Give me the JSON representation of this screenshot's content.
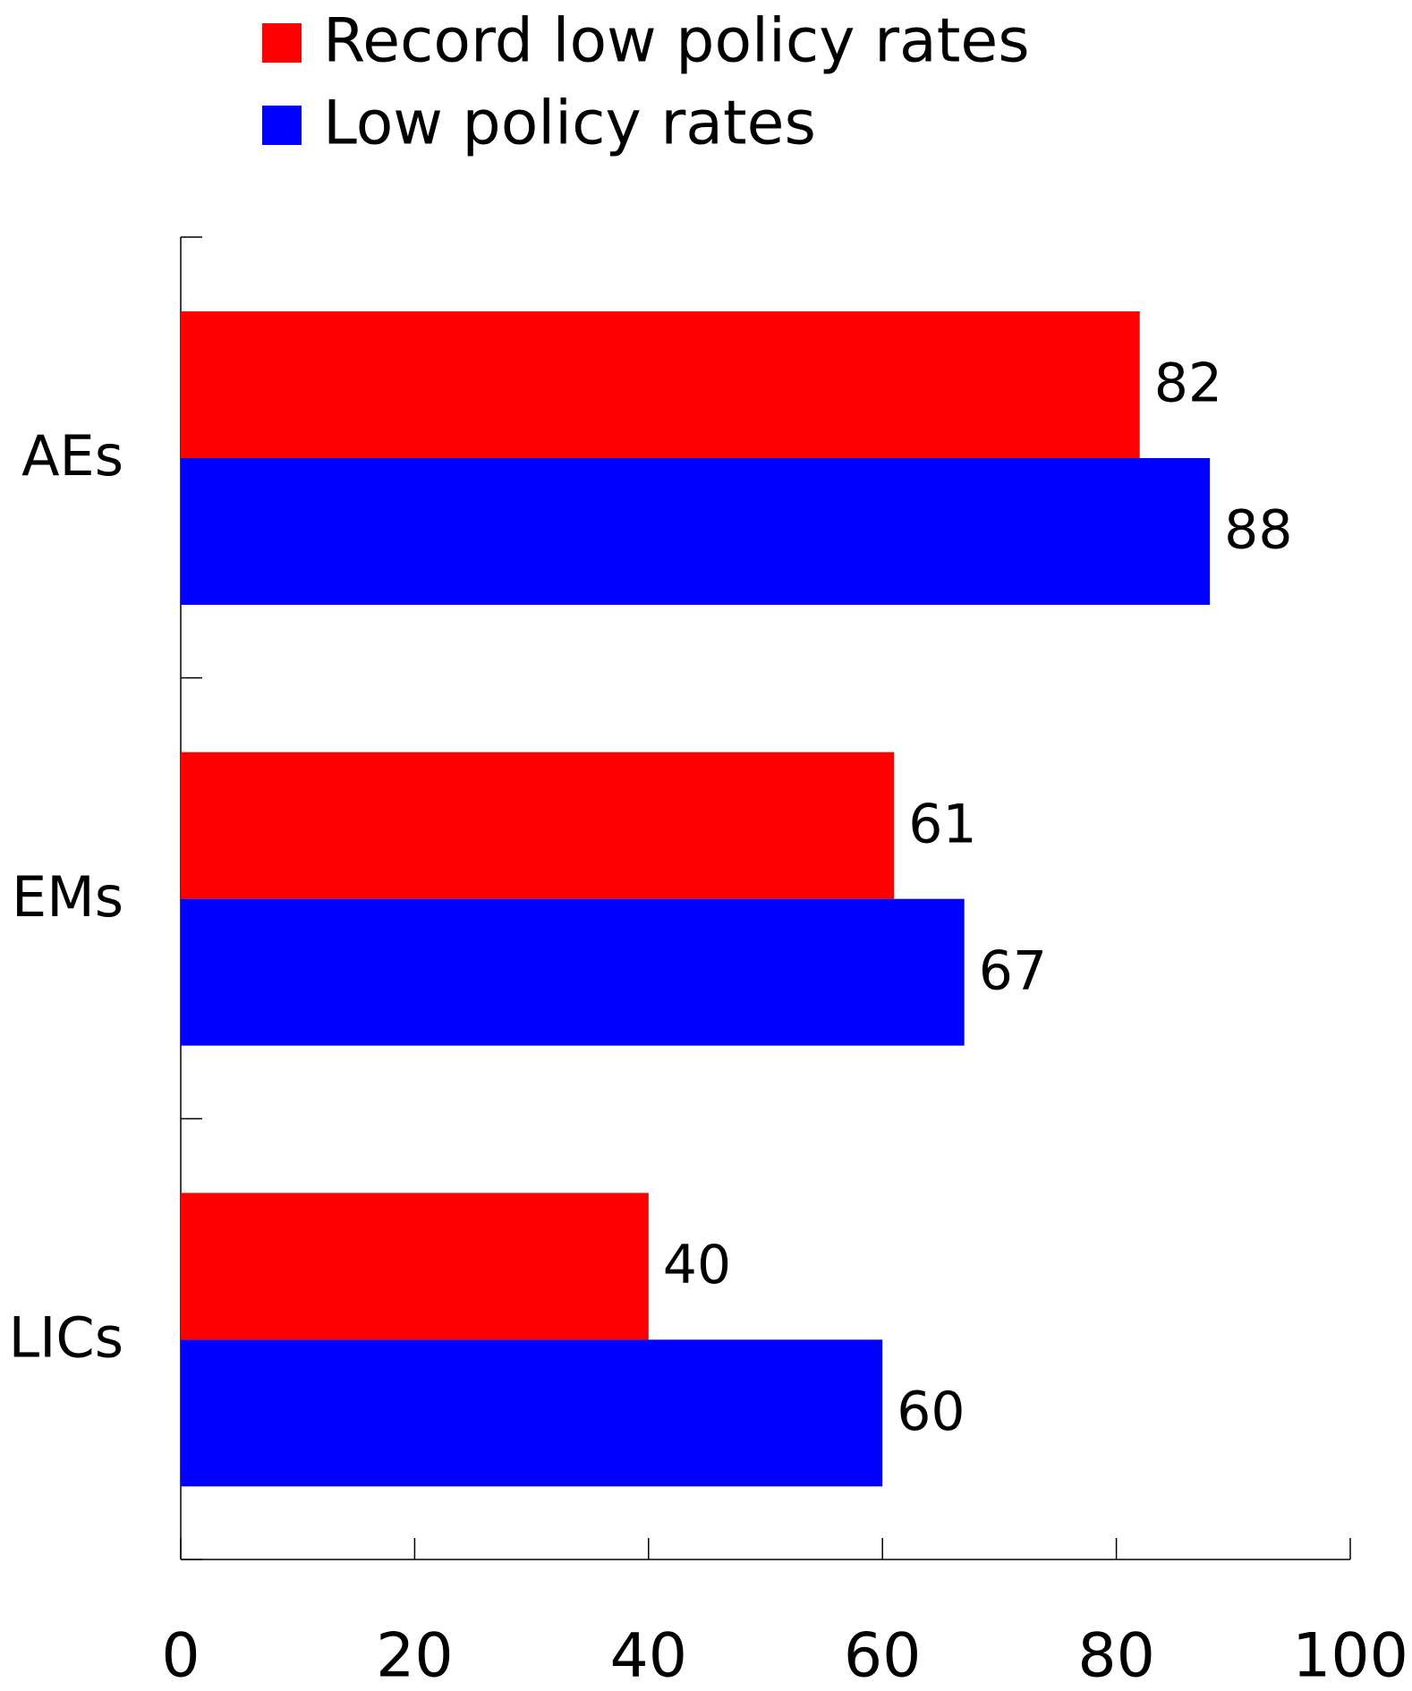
{
  "chart_data": {
    "type": "bar",
    "orientation": "horizontal",
    "categories": [
      "AEs",
      "EMs",
      "LICs"
    ],
    "series": [
      {
        "name": "Record low policy rates",
        "color": "#ff0000",
        "values": [
          82,
          61,
          40
        ]
      },
      {
        "name": "Low policy rates",
        "color": "#0000ff",
        "values": [
          88,
          67,
          60
        ]
      }
    ],
    "xlim": [
      0,
      100
    ],
    "xticks": [
      0,
      20,
      40,
      60,
      80,
      100
    ],
    "legend": "top"
  }
}
